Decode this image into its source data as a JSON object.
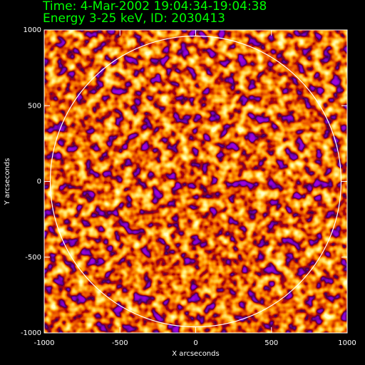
{
  "chart_data": {
    "type": "image",
    "title": "Time:  4-Mar-2002 19:04:34-19:04:38",
    "subtitle": "Energy 3-25 keV,   ID:      2030413",
    "xlabel": "X arcseconds",
    "ylabel": "Y arcseconds",
    "xlim": [
      -1000,
      1000
    ],
    "ylim": [
      -1000,
      1000
    ],
    "xticks": [
      -1000,
      -500,
      0,
      500,
      1000
    ],
    "yticks": [
      -1000,
      -500,
      0,
      500,
      1000
    ],
    "text_color": "#00ff00",
    "axis_color": "#ffffff",
    "background": "#000000"
  }
}
